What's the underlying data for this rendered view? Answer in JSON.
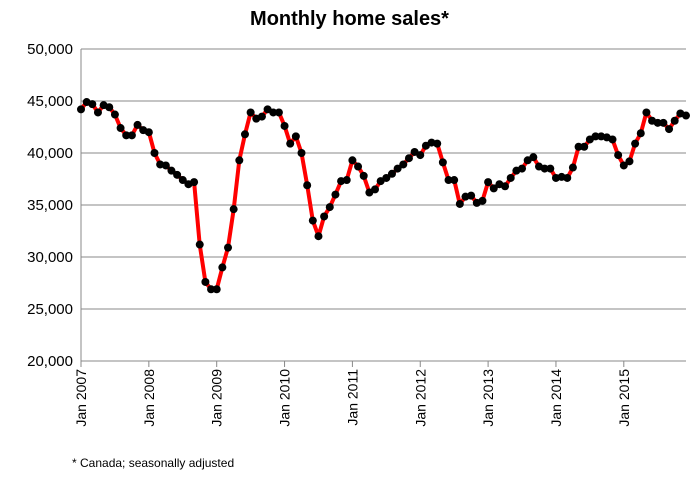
{
  "chart_data": {
    "type": "line",
    "title": "Monthly home sales*",
    "footnote": "* Canada; seasonally adjusted",
    "xlabel": "",
    "ylabel": "",
    "x_start": "Jan 2007",
    "x_end": "Dec 2015",
    "x_frequency": "monthly",
    "x_tick_labels": [
      "Jan 2007",
      "Jan 2008",
      "Jan 2009",
      "Jan 2010",
      "Jan 2011",
      "Jan 2012",
      "Jan 2013",
      "Jan 2014",
      "Jan 2015"
    ],
    "ylim": [
      20000,
      50000
    ],
    "y_tick_labels": [
      "20,000",
      "25,000",
      "30,000",
      "35,000",
      "40,000",
      "45,000",
      "50,000"
    ],
    "y_tick_values": [
      20000,
      25000,
      30000,
      35000,
      40000,
      45000,
      50000
    ],
    "grid": "horizontal",
    "line_color": "#ff0000",
    "marker_color": "#000000",
    "series": [
      {
        "values": [
          44200,
          44900,
          44700,
          43900,
          44600,
          44400,
          43700,
          42400,
          41700,
          41700,
          42700,
          42200,
          42000,
          40000,
          38900,
          38800,
          38300,
          37900,
          37400,
          37000,
          37200,
          31200,
          27600,
          26900,
          26900,
          29000,
          30900,
          34600,
          39300,
          41800,
          43900,
          43300,
          43500,
          44200,
          43900,
          43900,
          42600,
          40900,
          41600,
          40000,
          36900,
          33500,
          32000,
          33900,
          34800,
          36000,
          37300,
          37400,
          39300,
          38700,
          37800,
          36200,
          36500,
          37300,
          37600,
          38000,
          38500,
          38900,
          39500,
          40100,
          39800,
          40700,
          41000,
          40900,
          39100,
          37400,
          37400,
          35100,
          35800,
          35900,
          35200,
          35400,
          37200,
          36600,
          37000,
          36800,
          37600,
          38300,
          38500,
          39300,
          39600,
          38700,
          38500,
          38500,
          37600,
          37700,
          37600,
          38600,
          40600,
          40600,
          41300,
          41600,
          41600,
          41500,
          41300,
          39800,
          38800,
          39200,
          40900,
          41900,
          43900,
          43100,
          42900,
          42900,
          42300,
          43100,
          43800,
          43600
        ]
      }
    ]
  }
}
